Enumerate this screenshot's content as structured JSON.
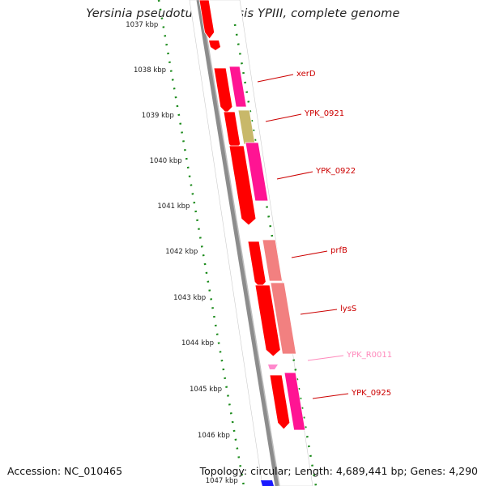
{
  "title": "Yersinia pseudotuberculosis YPIII, complete genome",
  "footer": {
    "accession": "Accession: NC_010465",
    "summary": "Topology: circular; Length: 4,689,441 bp; Genes: 4,290"
  },
  "scale_labels": [
    "1037 kbp",
    "1038 kbp",
    "1039 kbp",
    "1040 kbp",
    "1041 kbp",
    "1042 kbp",
    "1043 kbp",
    "1044 kbp",
    "1045 kbp",
    "1046 kbp",
    "1047 kbp"
  ],
  "genes": [
    {
      "name": "xerD",
      "color": "#cc0000"
    },
    {
      "name": "YPK_0921",
      "color": "#cc0000"
    },
    {
      "name": "YPK_0922",
      "color": "#cc0000"
    },
    {
      "name": "prfB",
      "color": "#cc0000"
    },
    {
      "name": "lysS",
      "color": "#cc0000"
    },
    {
      "name": "YPK_R0011",
      "color": "#ff88bb"
    },
    {
      "name": "YPK_0925",
      "color": "#cc0000"
    }
  ],
  "colors": {
    "cds": "#ff0000",
    "gene_magenta": "#ff1493",
    "gene_olive": "#c8b86a",
    "gene_salmon": "#f28080",
    "backbone": "#888888",
    "scale_dots": "#1a8a1a",
    "rna": "#ff88cc",
    "blue_feature": "#1a1aff"
  }
}
